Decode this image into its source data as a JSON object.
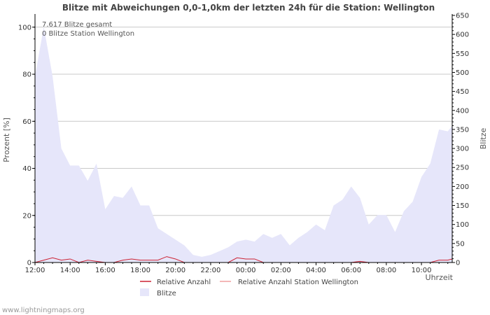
{
  "chart_data": {
    "type": "area",
    "title": "Blitze mit Abweichungen 0,0-1,0km der letzten 24h für die Station: Wellington",
    "xlabel": "Uhrzeit",
    "ylabel_left": "Prozent   [%]",
    "ylabel_right": "Blitze",
    "ylim_left": [
      0,
      105
    ],
    "ylim_right": [
      0,
      650
    ],
    "yticks_left": [
      0,
      20,
      40,
      60,
      80,
      100
    ],
    "yticks_right": [
      0,
      50,
      100,
      150,
      200,
      250,
      300,
      350,
      400,
      450,
      500,
      550,
      600,
      650
    ],
    "x_range_hours": [
      0,
      23.75
    ],
    "x_tick_labels": [
      "12:00",
      "14:00",
      "16:00",
      "18:00",
      "20:00",
      "22:00",
      "00:00",
      "02:00",
      "04:00",
      "06:00",
      "08:00",
      "10:00"
    ],
    "x_tick_hours": [
      0,
      2,
      4,
      6,
      8,
      10,
      12,
      14,
      16,
      18,
      20,
      22
    ],
    "annotations": [
      "7.617 Blitze gesamt",
      "0 Blitze Station Wellington"
    ],
    "series": [
      {
        "name": "Blitze",
        "axis": "right",
        "color": "#e6e6fa",
        "x": [
          0,
          0.5,
          1,
          1.5,
          2,
          2.5,
          3,
          3.5,
          4,
          4.5,
          5,
          5.5,
          6,
          6.5,
          7,
          7.5,
          8,
          8.5,
          9,
          9.5,
          10,
          10.5,
          11,
          11.5,
          12,
          12.5,
          13,
          13.5,
          14,
          14.5,
          15,
          15.5,
          16,
          16.5,
          17,
          17.5,
          18,
          18.5,
          19,
          19.5,
          20,
          20.5,
          21,
          21.5,
          22,
          22.5,
          23,
          23.5,
          23.75
        ],
        "values": [
          490,
          620,
          490,
          300,
          255,
          255,
          215,
          260,
          140,
          175,
          170,
          200,
          150,
          150,
          90,
          75,
          60,
          45,
          20,
          15,
          20,
          30,
          40,
          55,
          60,
          55,
          75,
          65,
          75,
          45,
          65,
          80,
          100,
          85,
          150,
          165,
          200,
          170,
          100,
          125,
          125,
          80,
          135,
          160,
          225,
          260,
          350,
          345,
          360
        ]
      },
      {
        "name": "Relative Anzahl",
        "axis": "left",
        "color": "#cc2233",
        "x": [
          0,
          0.5,
          1,
          1.5,
          2,
          2.5,
          3,
          3.5,
          4,
          4.5,
          5,
          5.5,
          6,
          6.5,
          7,
          7.5,
          8,
          8.5,
          9,
          9.5,
          10,
          10.5,
          11,
          11.5,
          12,
          12.5,
          13,
          13.5,
          14,
          14.5,
          15,
          15.5,
          16,
          16.5,
          17,
          17.5,
          18,
          18.5,
          19,
          19.5,
          20,
          20.5,
          21,
          21.5,
          22,
          22.5,
          23,
          23.5,
          23.75
        ],
        "values": [
          0,
          1,
          2,
          1,
          1.5,
          0,
          1,
          0.5,
          0,
          0,
          1,
          1.5,
          1,
          1,
          1,
          2.5,
          1.5,
          0,
          0,
          0,
          0,
          0,
          0,
          2,
          1.5,
          1.5,
          0,
          0,
          0,
          0,
          0,
          0,
          0,
          0,
          0,
          0,
          0,
          0.5,
          0,
          0,
          0,
          0,
          0,
          0,
          0,
          0,
          1,
          1,
          1.5
        ]
      },
      {
        "name": "Relative Anzahl Station Wellington",
        "axis": "left",
        "color": "#f0a0a0",
        "x": [
          0,
          23.75
        ],
        "values": [
          0,
          0
        ]
      }
    ],
    "legend": [
      "Relative Anzahl",
      "Relative Anzahl Station Wellington",
      "Blitze"
    ]
  },
  "footer": "www.lightningmaps.org"
}
